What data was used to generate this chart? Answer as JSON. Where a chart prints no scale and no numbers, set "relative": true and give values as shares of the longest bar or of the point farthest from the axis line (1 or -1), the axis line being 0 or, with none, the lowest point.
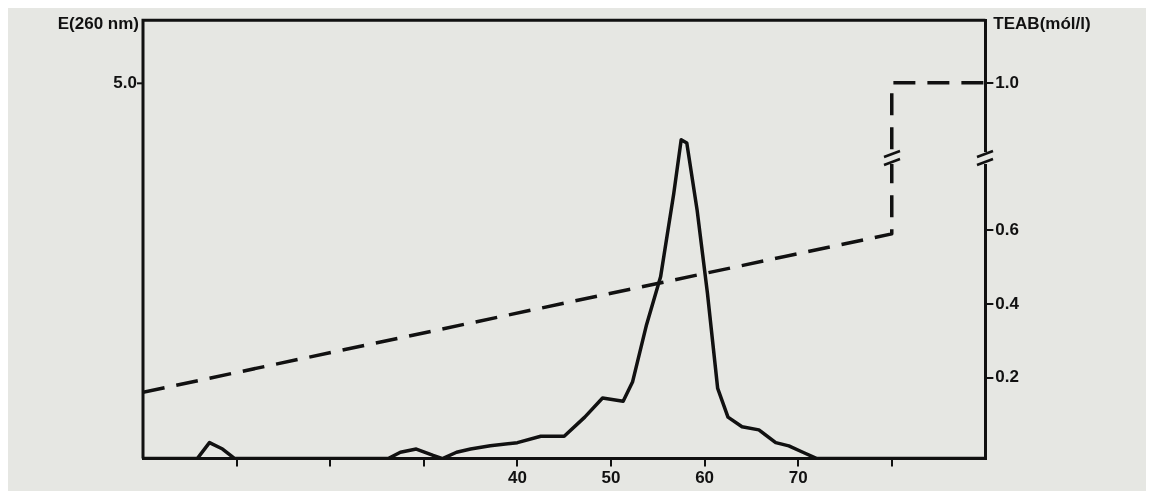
{
  "chart_data": {
    "type": "line",
    "ylabel": "E(260 nm)",
    "y2label": "TEAB(mól/l)",
    "xlim": [
      0,
      90
    ],
    "xticks": [
      {
        "value": 10,
        "label": null
      },
      {
        "value": 20,
        "label": null
      },
      {
        "value": 30,
        "label": null
      },
      40,
      50,
      60,
      70,
      {
        "value": 80,
        "label": null
      }
    ],
    "relative": true,
    "annotations": [
      "5.0"
    ],
    "y2lim": [
      -0.02,
      1.17
    ],
    "y2ticks": [
      0.2,
      0.4,
      0.6,
      {
        "value": 1,
        "label": "1.0"
      }
    ],
    "grid": false,
    "legend": false,
    "marker": "none",
    "series": [
      {
        "color": "#111111",
        "line_style": "solid",
        "x": [
          0,
          5.8,
          7.1,
          8.5,
          9.8,
          26.2,
          27.5,
          29.2,
          31,
          32,
          33.5,
          35,
          37.1,
          40,
          42.5,
          45,
          47.2,
          49.1,
          51.3,
          52.3,
          53.8,
          55.3,
          56.7,
          57.5,
          58.1,
          59.2,
          60.3,
          61.4,
          62.5,
          64,
          65.8,
          67.6,
          69,
          70.5,
          72,
          90
        ],
        "values": [
          0,
          0,
          0.05,
          0.03,
          0,
          0,
          0.02,
          0.03,
          0.01,
          0,
          0.02,
          0.03,
          0.04,
          0.05,
          0.07,
          0.07,
          0.13,
          0.19,
          0.18,
          0.24,
          0.42,
          0.57,
          0.83,
          1,
          0.99,
          0.78,
          0.52,
          0.22,
          0.13,
          0.1,
          0.09,
          0.05,
          0.04,
          0.02,
          0,
          0
        ]
      },
      {
        "color": "#111111",
        "line_style": "dashed",
        "axis": "y2",
        "x": [
          0,
          80,
          80,
          90
        ],
        "values": [
          0.16,
          0.59,
          1.0,
          1.0
        ]
      }
    ]
  }
}
